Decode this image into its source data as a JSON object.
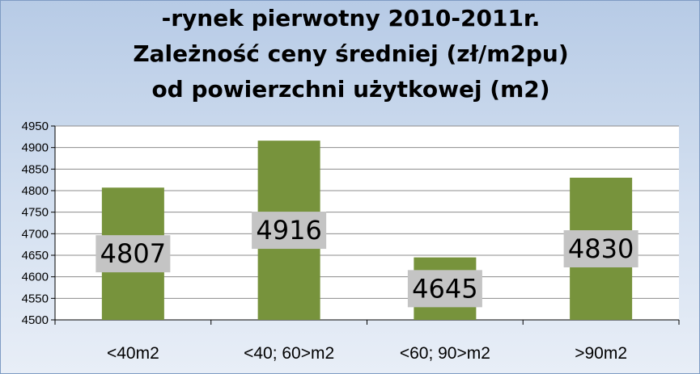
{
  "chart_data": {
    "type": "bar",
    "title_lines": [
      "-rynek pierwotny 2010-2011r.",
      "Zależność ceny średniej (zł/m2pu)",
      "od powierzchni użytkowej (m2)"
    ],
    "categories": [
      "<40m2",
      "<40; 60>m2",
      "<60; 90>m2",
      ">90m2"
    ],
    "values": [
      4807,
      4916,
      4645,
      4830
    ],
    "data_labels": [
      "4807",
      "4916",
      "4645",
      "4830"
    ],
    "y_ticks": [
      "4500",
      "4550",
      "4600",
      "4650",
      "4700",
      "4750",
      "4800",
      "4850",
      "4900",
      "4950"
    ],
    "ylim": [
      4500,
      4950
    ],
    "ystep": 50,
    "grid": true,
    "legend": "none",
    "colors": {
      "bar": "#77933c",
      "label_box": "#c4c4c4",
      "plot_bg": "#ffffff",
      "grid": "#8c8c8c"
    }
  }
}
